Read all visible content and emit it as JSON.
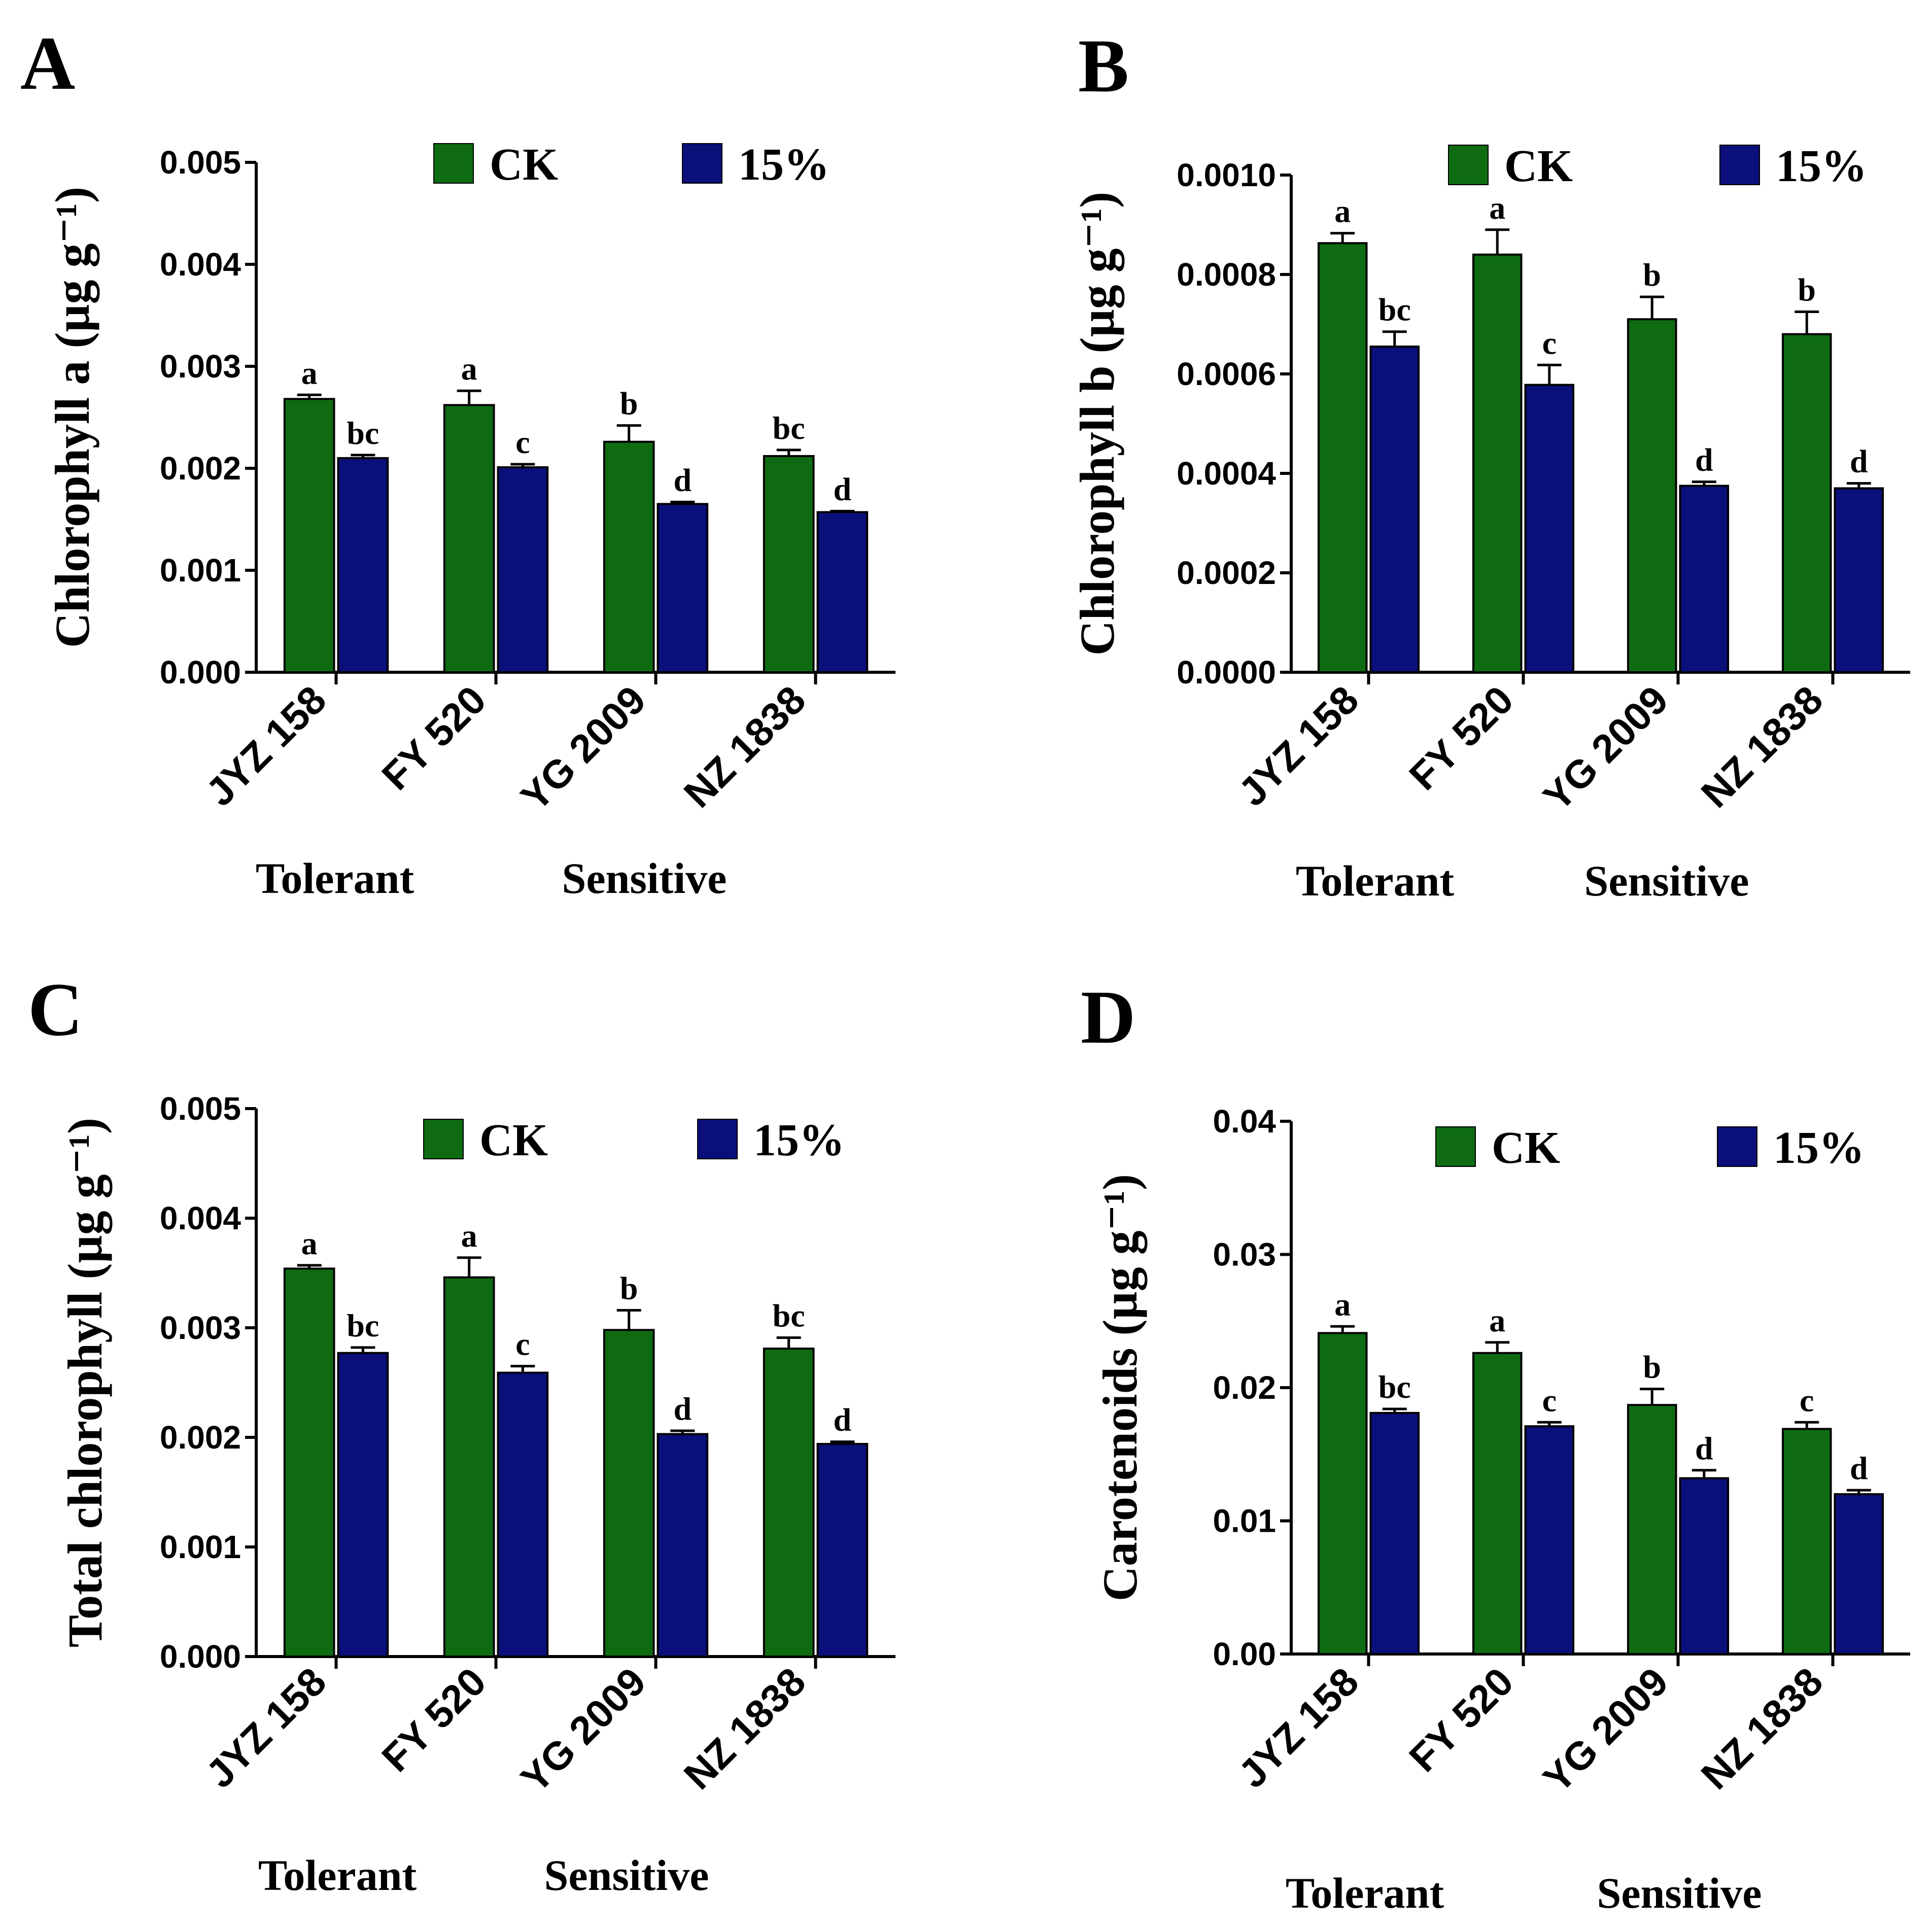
{
  "figure": {
    "colors": {
      "CK": "#0e6b12",
      "15%": "#0b0f7a",
      "axis": "#000000"
    },
    "group_labels": [
      "Tolerant",
      "Sensitive"
    ]
  },
  "chart_data": [
    {
      "panel": "A",
      "type": "bar",
      "title": "",
      "xlabel": "",
      "ylabel": "Chlorophyll a (µg g⁻¹)",
      "ylim": [
        0,
        0.005
      ],
      "yticks": [
        "0.000",
        "0.001",
        "0.002",
        "0.003",
        "0.004",
        "0.005"
      ],
      "categories": [
        "JYZ 158",
        "FY 520",
        "YG 2009",
        "NZ 1838"
      ],
      "groups": [
        {
          "label": "Tolerant",
          "categories": [
            "JYZ 158",
            "FY 520"
          ]
        },
        {
          "label": "Sensitive",
          "categories": [
            "YG 2009",
            "NZ 1838"
          ]
        }
      ],
      "legend": [
        "CK",
        "15%"
      ],
      "legend_position": "top",
      "series": [
        {
          "name": "CK",
          "values": [
            0.00268,
            0.00262,
            0.00226,
            0.00212
          ],
          "errors": [
            4e-05,
            0.00014,
            0.00016,
            6e-05
          ],
          "letters": [
            "a",
            "a",
            "b",
            "bc"
          ]
        },
        {
          "name": "15%",
          "values": [
            0.0021,
            0.00201,
            0.00165,
            0.00157
          ],
          "errors": [
            3e-05,
            3e-05,
            2e-05,
            1e-05
          ],
          "letters": [
            "bc",
            "c",
            "d",
            "d"
          ]
        }
      ]
    },
    {
      "panel": "B",
      "type": "bar",
      "title": "",
      "xlabel": "",
      "ylabel": "Chlorophyll b (µg g⁻¹)",
      "ylim": [
        0,
        0.001
      ],
      "yticks": [
        "0.0000",
        "0.0002",
        "0.0004",
        "0.0006",
        "0.0008",
        "0.0010"
      ],
      "categories": [
        "JYZ 158",
        "FY 520",
        "YG 2009",
        "NZ 1838"
      ],
      "groups": [
        {
          "label": "Tolerant",
          "categories": [
            "JYZ 158",
            "FY 520"
          ]
        },
        {
          "label": "Sensitive",
          "categories": [
            "YG 2009",
            "NZ 1838"
          ]
        }
      ],
      "legend": [
        "CK",
        "15%"
      ],
      "legend_position": "top",
      "series": [
        {
          "name": "CK",
          "values": [
            0.000863,
            0.00084,
            0.00071,
            0.00068
          ],
          "errors": [
            2e-05,
            5e-05,
            4.5e-05,
            4.5e-05
          ],
          "letters": [
            "a",
            "a",
            "b",
            "b"
          ]
        },
        {
          "name": "15%",
          "values": [
            0.000655,
            0.000578,
            0.000375,
            0.00037
          ],
          "errors": [
            3e-05,
            4e-05,
            8e-06,
            1e-05
          ],
          "letters": [
            "bc",
            "c",
            "d",
            "d"
          ]
        }
      ]
    },
    {
      "panel": "C",
      "type": "bar",
      "title": "",
      "xlabel": "",
      "ylabel": "Total chlorophyll (µg g⁻¹)",
      "ylim": [
        0,
        0.005
      ],
      "yticks": [
        "0.000",
        "0.001",
        "0.002",
        "0.003",
        "0.004",
        "0.005"
      ],
      "categories": [
        "JYZ 158",
        "FY 520",
        "YG 2009",
        "NZ 1838"
      ],
      "groups": [
        {
          "label": "Tolerant",
          "categories": [
            "JYZ 158",
            "FY 520"
          ]
        },
        {
          "label": "Sensitive",
          "categories": [
            "YG 2009",
            "NZ 1838"
          ]
        }
      ],
      "legend": [
        "CK",
        "15%"
      ],
      "legend_position": "top",
      "series": [
        {
          "name": "CK",
          "values": [
            0.00354,
            0.00346,
            0.00298,
            0.00281
          ],
          "errors": [
            3e-05,
            0.00018,
            0.00018,
            0.0001
          ],
          "letters": [
            "a",
            "a",
            "b",
            "bc"
          ]
        },
        {
          "name": "15%",
          "values": [
            0.00277,
            0.00259,
            0.00203,
            0.00194
          ],
          "errors": [
            5e-05,
            6e-05,
            3e-05,
            2e-05
          ],
          "letters": [
            "bc",
            "c",
            "d",
            "d"
          ]
        }
      ]
    },
    {
      "panel": "D",
      "type": "bar",
      "title": "",
      "xlabel": "",
      "ylabel": "Carotenoids (µg g⁻¹)",
      "ylim": [
        0,
        0.04
      ],
      "yticks": [
        "0.00",
        "0.01",
        "0.02",
        "0.03",
        "0.04"
      ],
      "categories": [
        "JYZ 158",
        "FY 520",
        "YG 2009",
        "NZ 1838"
      ],
      "groups": [
        {
          "label": "Tolerant",
          "categories": [
            "JYZ 158",
            "FY 520"
          ]
        },
        {
          "label": "Sensitive",
          "categories": [
            "YG 2009",
            "NZ 1838"
          ]
        }
      ],
      "legend": [
        "CK",
        "15%"
      ],
      "legend_position": "top",
      "series": [
        {
          "name": "CK",
          "values": [
            0.0241,
            0.0226,
            0.0187,
            0.0169
          ],
          "errors": [
            0.0005,
            0.0008,
            0.0012,
            0.0005
          ],
          "letters": [
            "a",
            "a",
            "b",
            "c"
          ]
        },
        {
          "name": "15%",
          "values": [
            0.0181,
            0.0171,
            0.0132,
            0.012
          ],
          "errors": [
            0.0003,
            0.0003,
            0.0006,
            0.0003
          ],
          "letters": [
            "bc",
            "c",
            "d",
            "d"
          ]
        }
      ]
    }
  ]
}
